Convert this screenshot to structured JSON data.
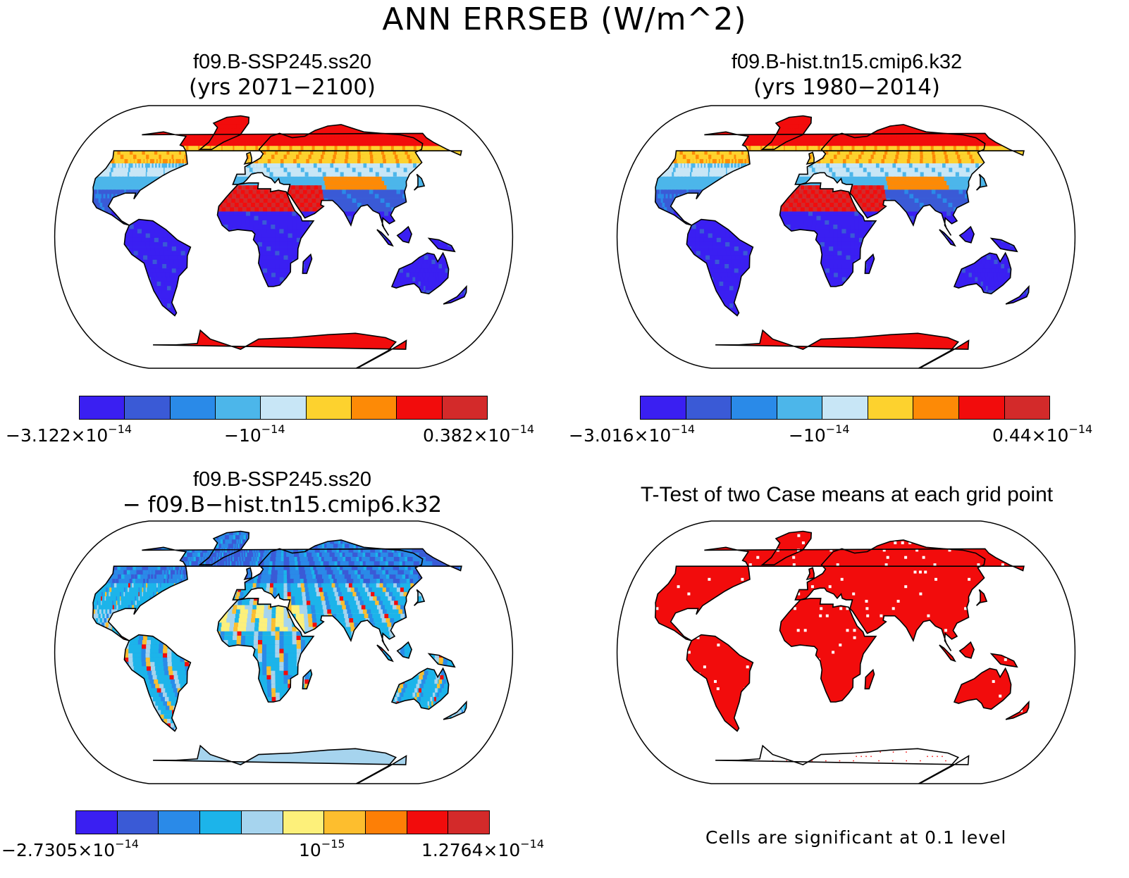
{
  "title": "ANN ERRSEB (W/m^2)",
  "panels": [
    {
      "title_line1": "f09.B-SSP245.ss20",
      "title_line2": "(yrs 2071−2100)",
      "colorbar": {
        "colors": [
          "#3a1ff2",
          "#3a5ad6",
          "#2a8ae8",
          "#4cb6ea",
          "#c8e6f6",
          "#fdd22e",
          "#fd8a06",
          "#f20c0c",
          "#d32a2a"
        ],
        "label_min": "−3.122×10",
        "label_min_exp": "−14",
        "label_mid": "−10",
        "label_mid_exp": "−14",
        "label_max": "0.382×10",
        "label_max_exp": "−14"
      }
    },
    {
      "title_line1": "f09.B-hist.tn15.cmip6.k32",
      "title_line2": "(yrs 1980−2014)",
      "colorbar": {
        "colors": [
          "#3a1ff2",
          "#3a5ad6",
          "#2a8ae8",
          "#4cb6ea",
          "#c8e6f6",
          "#fdd22e",
          "#fd8a06",
          "#f20c0c",
          "#d32a2a"
        ],
        "label_min": "−3.016×10",
        "label_min_exp": "−14",
        "label_mid": "−10",
        "label_mid_exp": "−14",
        "label_max": "0.44×10",
        "label_max_exp": "−14"
      }
    },
    {
      "title_line1": "f09.B-SSP245.ss20",
      "title_line2": "− f09.B−hist.tn15.cmip6.k32",
      "colorbar": {
        "colors": [
          "#3a1ff2",
          "#3a5ad6",
          "#2a8ae8",
          "#1cb4ea",
          "#a6d4ee",
          "#fdf07a",
          "#fdbe2e",
          "#fd7f06",
          "#f20c0c",
          "#d32a2a"
        ],
        "label_min": "−2.7305×10",
        "label_min_exp": "−14",
        "label_mid": "10",
        "label_mid_exp": "−15",
        "label_max": "1.2764×10",
        "label_max_exp": "−14"
      }
    },
    {
      "title_line1": "T-Test of two Case means at each grid point",
      "note": "Cells are significant at 0.1 level"
    }
  ],
  "colors": {
    "ocean": "#ffffff",
    "outline": "#000000",
    "significant": "#f20c0c"
  }
}
